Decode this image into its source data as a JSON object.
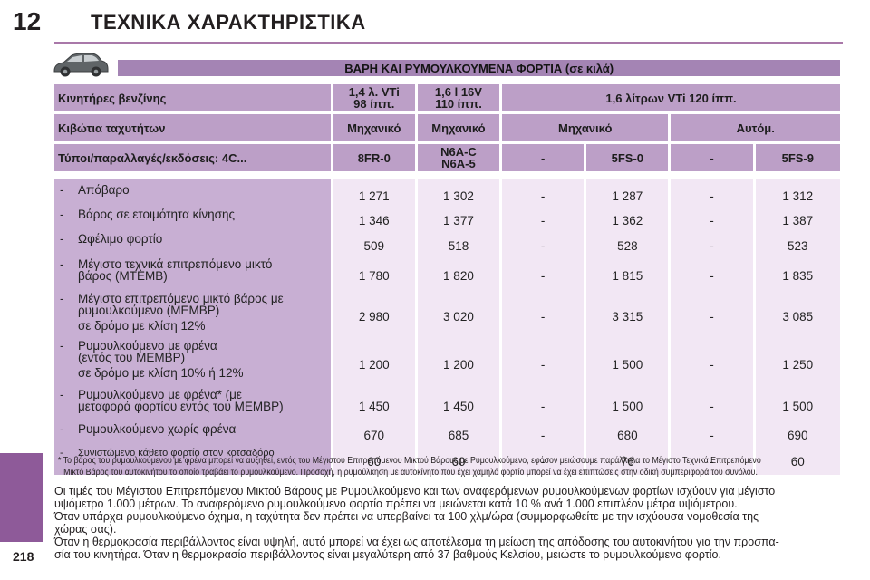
{
  "header": {
    "chapter_number": "12",
    "chapter_title": "ΤΕΧΝΙΚΑ ΧΑΡΑΚΤΗΡΙΣΤΙΚΑ"
  },
  "colors": {
    "accent": "#a978a9",
    "banner": "#a484b4",
    "header_cell": "#bc9fc7",
    "label_cell": "#c8afd3",
    "value_cell": "#f2e7f4",
    "side_tab": "#8e5a99"
  },
  "icons": {
    "car": "car-icon"
  },
  "table": {
    "title": "ΒΑΡΗ ΚΑΙ ΡΥΜΟΥΛΚΟΥΜΕΝΑ ΦΟΡΤΙΑ (σε κιλά)",
    "header_rows": [
      {
        "label": "Κινητήρες βενζίνης",
        "cells": [
          [
            "1,4 λ. VTi",
            "98 ίππ."
          ],
          [
            "1,6 l 16V",
            "110 ίππ."
          ],
          [
            "1,6 λίτρων VTi 120 ίππ."
          ]
        ]
      },
      {
        "label": "Κιβώτια ταχυτήτων",
        "cells": [
          [
            "Μηχανικό"
          ],
          [
            "Μηχανικό"
          ],
          [
            "Μηχανικό"
          ],
          [
            "Αυτόμ."
          ]
        ]
      },
      {
        "label": "Τύποι/παραλλαγές/εκδόσεις: 4C...",
        "cells": [
          [
            "8FR-0"
          ],
          [
            "N6A-C",
            "N6A-5"
          ],
          [
            "-"
          ],
          [
            "5FS-0"
          ],
          [
            "-"
          ],
          [
            "5FS-9"
          ]
        ]
      }
    ],
    "rows": [
      {
        "dash": "-",
        "lines": [
          "Απόβαρο"
        ],
        "values": [
          "1 271",
          "1 302",
          "-",
          "1 287",
          "-",
          "1 312"
        ]
      },
      {
        "dash": "-",
        "lines": [
          "Βάρος σε ετοιμότητα κίνησης"
        ],
        "values": [
          "1 346",
          "1 377",
          "-",
          "1 362",
          "-",
          "1 387"
        ]
      },
      {
        "dash": "-",
        "lines": [
          "Ωφέλιμο φορτίο"
        ],
        "values": [
          "509",
          "518",
          "-",
          "528",
          "-",
          "523"
        ]
      },
      {
        "dash": "-",
        "lines": [
          "Μέγιστο τεχνικά επιτρεπόμενο μικτό",
          "βάρος (MTEMB)"
        ],
        "values": [
          "1 780",
          "1 820",
          "-",
          "1 815",
          "-",
          "1 835"
        ]
      },
      {
        "dash": "-",
        "lines": [
          "Μέγιστο επιτρεπόμενο μικτό βάρος με",
          "ρυμουλκούμενο (MEMBP)",
          "σε δρόμο με κλίση 12%"
        ],
        "values": [
          "2 980",
          "3 020",
          "-",
          "3 315",
          "-",
          "3 085"
        ]
      },
      {
        "dash": "-",
        "lines": [
          "Ρυμουλκούμενο με φρένα",
          "(εντός του MEMBP)",
          "σε δρόμο με κλίση 10% ή 12%"
        ],
        "values": [
          "1 200",
          "1 200",
          "-",
          "1 500",
          "-",
          "1 250"
        ]
      },
      {
        "dash": "-",
        "lines": [
          "Ρυμουλκούμενο με φρένα* (με",
          "μεταφορά φορτίου εντός του MEMBP)"
        ],
        "values": [
          "1 450",
          "1 450",
          "-",
          "1 500",
          "-",
          "1 500"
        ]
      },
      {
        "dash": "-",
        "lines": [
          "Ρυμουλκούμενο χωρίς φρένα"
        ],
        "values": [
          "670",
          "685",
          "-",
          "680",
          "-",
          "690"
        ]
      },
      {
        "dash": "-",
        "lines": [
          "Συνιστώμενο κάθετο φορτίο στον κοτσαδόρο"
        ],
        "values": [
          "60",
          "60",
          "-",
          "76",
          "-",
          "60"
        ]
      }
    ]
  },
  "footnote": {
    "line1": "* Το βάρος του ρυμουλκούμενου με φρένα μπορεί να αυξηθεί, εντός του Μέγιστου Επιτρεπόμενου Μικτού Βάρους με Ρυμουλκούμενο, εφόσον μειώσουμε παράλληλα το Μέγιστο Τεχνικά Επιτρεπόμενο",
    "line2": "Μικτό Βάρος του αυτοκινήτου το οποίο τραβάει το ρυμουλκούμενο. Προσοχή, η ρυμούλκηση με αυτοκίνητο που έχει χαμηλό φορτίο μπορεί να έχει επιπτώσεις στην οδική συμπεριφορά του συνόλου."
  },
  "paragraphs": [
    [
      "Οι τιμές του Μέγιστου Επιτρεπόμενου Μικτού Βάρους με Ρυμουλκούμενο και των αναφερόμενων ρυμουλκούμενων φορτίων ισχύουν για μέγιστο",
      "υψόμετρο 1.000 μέτρων. Το αναφερόμενο ρυμουλκούμενο φορτίο πρέπει να μειώνεται κατά 10 % ανά 1.000 επιπλέον μέτρα υψόμετρου."
    ],
    [
      "Όταν υπάρχει ρυμουλκούμενο όχημα, η ταχύτητα δεν πρέπει να υπερβαίνει τα 100 χλμ/ώρα (συμμορφωθείτε με την ισχύουσα νομοθεσία της",
      "χώρας σας)."
    ],
    [
      "Όταν η θερμοκρασία περιβάλλοντος είναι υψηλή, αυτό μπορεί να έχει ως αποτέλεσμα τη μείωση της απόδοσης του αυτοκινήτου για την προσπα-",
      "σία του κινητήρα. Όταν η θερμοκρασία περιβάλλοντος είναι μεγαλύτερη από 37 βαθμούς Κελσίου, μειώστε το ρυμουλκούμενο φορτίο."
    ]
  ],
  "page_number": "218"
}
